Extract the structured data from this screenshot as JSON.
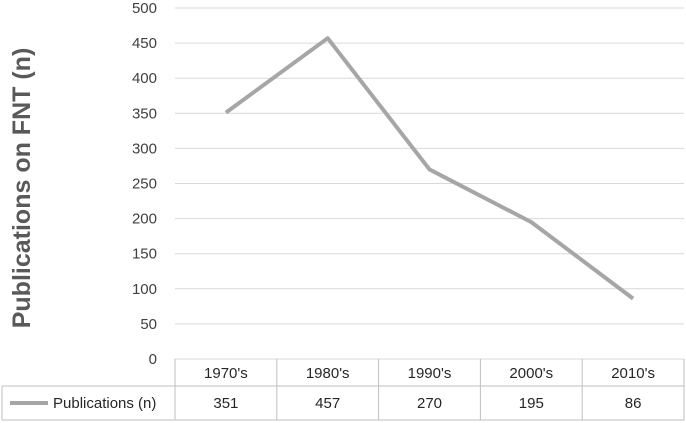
{
  "chart_data": {
    "type": "line",
    "title": "",
    "xlabel": "",
    "ylabel": "Publications on FNT (n)",
    "categories": [
      "1970's",
      "1980's",
      "1990's",
      "2000's",
      "2010's"
    ],
    "series": [
      {
        "name": "Publications (n)",
        "values": [
          351,
          457,
          270,
          195,
          86
        ],
        "color": "#a6a6a6"
      }
    ],
    "ylim": [
      0,
      500
    ],
    "yticks": [
      0,
      50,
      100,
      150,
      200,
      250,
      300,
      350,
      400,
      450,
      500
    ],
    "grid": true,
    "data_table": true
  }
}
